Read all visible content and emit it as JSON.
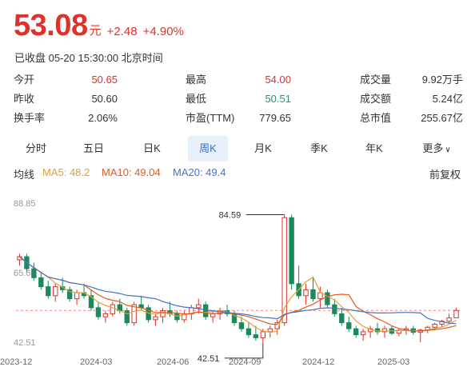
{
  "quote": {
    "price": "53.08",
    "unit": "元",
    "change": "+2.48",
    "change_pct": "+4.90%",
    "status": "已收盘 05-20 15:30:00 北京时间"
  },
  "stats": [
    [
      {
        "label": "今开",
        "value": "50.65",
        "color": "red"
      },
      {
        "label": "最高",
        "value": "54.00",
        "color": "red"
      },
      {
        "label": "成交量",
        "value": "9.92万手",
        "color": "dark"
      }
    ],
    [
      {
        "label": "昨收",
        "value": "50.60",
        "color": "dark"
      },
      {
        "label": "最低",
        "value": "50.51",
        "color": "green"
      },
      {
        "label": "成交额",
        "value": "5.24亿",
        "color": "dark"
      }
    ],
    [
      {
        "label": "换手率",
        "value": "2.06%",
        "color": "dark"
      },
      {
        "label": "市盈(TTM)",
        "value": "779.65",
        "color": "dark"
      },
      {
        "label": "总市值",
        "value": "255.67亿",
        "color": "dark"
      }
    ]
  ],
  "tabs": [
    "分时",
    "五日",
    "日K",
    "周K",
    "月K",
    "季K",
    "年K",
    "更多"
  ],
  "active_tab": "周K",
  "ma": {
    "title": "均线",
    "ma5": "MA5: 48.2",
    "ma10": "MA10: 49.04",
    "ma20": "MA20: 49.4",
    "adjust": "前复权"
  },
  "colors": {
    "up": "#e0312b",
    "down": "#1a8a5c",
    "ma5": "#e0a03a",
    "ma10": "#e05c1e",
    "ma20": "#4a72c8"
  },
  "chart_data": {
    "type": "candlestick",
    "y_ticks": [
      "88.85",
      "65.68",
      "42.51"
    ],
    "x_ticks": [
      "2023-12",
      "2024-03",
      "2024-06",
      "2024-09",
      "2024-12",
      "2025-03"
    ],
    "annotations": [
      {
        "text": "84.59"
      },
      {
        "text": "42.51"
      }
    ],
    "ylim": [
      42.51,
      88.85
    ],
    "last_close": 53.08,
    "candles": [
      [
        70,
        72,
        68,
        71
      ],
      [
        71,
        72,
        66,
        67
      ],
      [
        67,
        69,
        63,
        64
      ],
      [
        64,
        66,
        60,
        61
      ],
      [
        61,
        63,
        57,
        58
      ],
      [
        58,
        62,
        56,
        61
      ],
      [
        61,
        64,
        59,
        60
      ],
      [
        60,
        61,
        56,
        57
      ],
      [
        57,
        60,
        55,
        59
      ],
      [
        59,
        62,
        57,
        58
      ],
      [
        58,
        60,
        53,
        54
      ],
      [
        54,
        56,
        50,
        51
      ],
      [
        51,
        53,
        49,
        52
      ],
      [
        52,
        56,
        51,
        55
      ],
      [
        55,
        57,
        52,
        53
      ],
      [
        53,
        54,
        48,
        49
      ],
      [
        49,
        56,
        48,
        55
      ],
      [
        55,
        58,
        53,
        54
      ],
      [
        54,
        55,
        49,
        50
      ],
      [
        50,
        52,
        48,
        51
      ],
      [
        51,
        54,
        49,
        53
      ],
      [
        53,
        56,
        51,
        52
      ],
      [
        52,
        53,
        49,
        50
      ],
      [
        50,
        53,
        49,
        52
      ],
      [
        52,
        55,
        50,
        54
      ],
      [
        54,
        57,
        52,
        55
      ],
      [
        55,
        56,
        50,
        51
      ],
      [
        51,
        53,
        49,
        52
      ],
      [
        52,
        54,
        50,
        53
      ],
      [
        53,
        55,
        51,
        52
      ],
      [
        52,
        53,
        48,
        49
      ],
      [
        49,
        51,
        46,
        47
      ],
      [
        47,
        49,
        44,
        45
      ],
      [
        45,
        48,
        43,
        44
      ],
      [
        44,
        47,
        42,
        46
      ],
      [
        46,
        48,
        44,
        47
      ],
      [
        47,
        50,
        45,
        49
      ],
      [
        49,
        85,
        48,
        84
      ],
      [
        84,
        85,
        60,
        62
      ],
      [
        62,
        68,
        57,
        58
      ],
      [
        58,
        62,
        55,
        60
      ],
      [
        60,
        64,
        56,
        57
      ],
      [
        57,
        61,
        54,
        59
      ],
      [
        59,
        60,
        54,
        55
      ],
      [
        55,
        57,
        51,
        52
      ],
      [
        52,
        54,
        48,
        49
      ],
      [
        49,
        51,
        46,
        47
      ],
      [
        47,
        48,
        44,
        45
      ],
      [
        45,
        47,
        43,
        46
      ],
      [
        46,
        48,
        44,
        47
      ],
      [
        47,
        49,
        45,
        46
      ],
      [
        46,
        48,
        44,
        47
      ],
      [
        47,
        48,
        45,
        45.5
      ],
      [
        45.5,
        47,
        44.5,
        46.5
      ],
      [
        46.5,
        48,
        45,
        47
      ],
      [
        47,
        48,
        45,
        45.8
      ],
      [
        45.8,
        47,
        42.5,
        46.6
      ],
      [
        46.6,
        48,
        45.5,
        47.5
      ],
      [
        47.5,
        49,
        46.5,
        48.5
      ],
      [
        48.5,
        50,
        47.5,
        49.5
      ],
      [
        49.5,
        52,
        49,
        50.6
      ],
      [
        50.65,
        54,
        50.51,
        53.08
      ]
    ]
  }
}
